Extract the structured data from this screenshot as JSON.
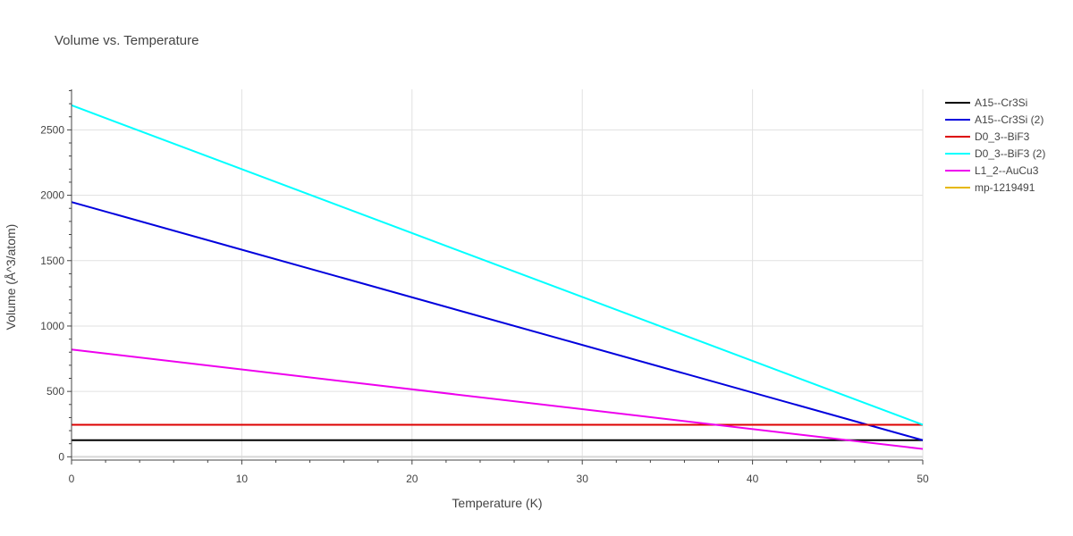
{
  "chart_data": {
    "type": "line",
    "title": "Volume vs. Temperature",
    "xlabel": "Temperature (K)",
    "ylabel": "Volume (Å^3/atom)",
    "xlim": [
      0,
      50
    ],
    "ylim": [
      -25,
      2810
    ],
    "xticks": [
      0,
      10,
      20,
      30,
      40,
      50
    ],
    "yticks": [
      0,
      500,
      1000,
      1500,
      2000,
      2500
    ],
    "grid": true,
    "legend_position": "top-right",
    "series": [
      {
        "name": "A15--Cr3Si",
        "color": "#000000",
        "x": [
          0,
          50
        ],
        "y": [
          127,
          127
        ]
      },
      {
        "name": "A15--Cr3Si (2)",
        "color": "#0000dd",
        "x": [
          0,
          50
        ],
        "y": [
          1948,
          127
        ]
      },
      {
        "name": "D0_3--BiF3",
        "color": "#dd0000",
        "x": [
          0,
          50
        ],
        "y": [
          245,
          245
        ]
      },
      {
        "name": "D0_3--BiF3 (2)",
        "color": "#00ffff",
        "x": [
          0,
          50
        ],
        "y": [
          2688,
          245
        ]
      },
      {
        "name": "L1_2--AuCu3",
        "color": "#ee00ee",
        "x": [
          0,
          50
        ],
        "y": [
          820,
          60
        ]
      },
      {
        "name": "mp-1219491",
        "color": "#e6b800",
        "x": [],
        "y": []
      }
    ]
  }
}
